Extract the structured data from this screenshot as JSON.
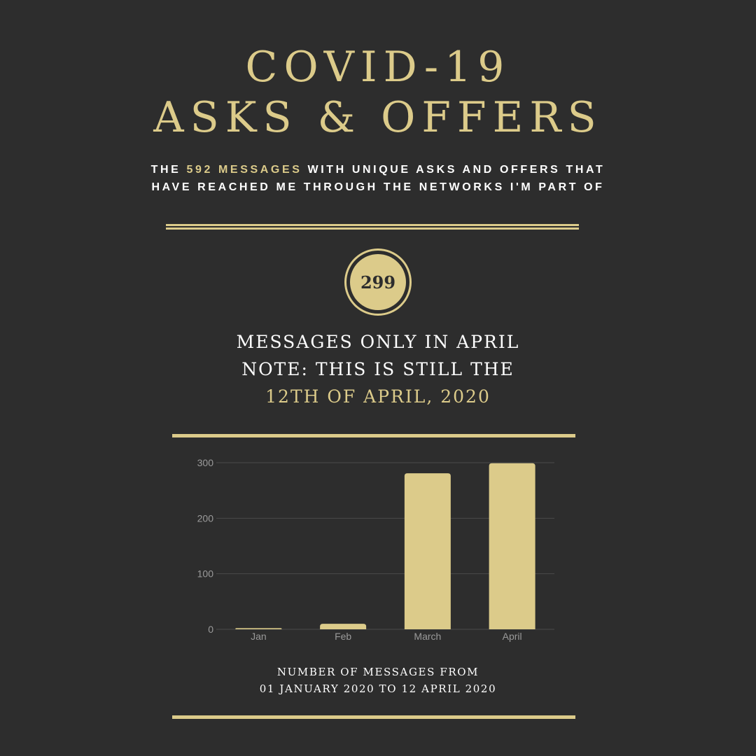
{
  "title": {
    "line1": "COVID-19",
    "line2": "ASKS & OFFERS"
  },
  "subtitle": {
    "prefix": "THE ",
    "highlight": "592 MESSAGES",
    "line1_rest": " WITH UNIQUE ASKS AND OFFERS THAT",
    "line2": "HAVE REACHED ME THROUGH THE NETWORKS I'M PART OF"
  },
  "badge": {
    "value": "299"
  },
  "note": {
    "line1": "MESSAGES ONLY IN APRIL",
    "line2": "NOTE: THIS IS STILL THE",
    "line3": "12TH OF APRIL, 2020"
  },
  "caption": {
    "line1": "NUMBER OF MESSAGES FROM",
    "line2": "01 JANUARY 2020 TO 12 APRIL 2020"
  },
  "colors": {
    "background": "#2d2d2d",
    "accent": "#dccb8a",
    "text": "#ffffff",
    "axis_text": "#9a9a9a",
    "grid": "#4a4a4a"
  },
  "chart_data": {
    "type": "bar",
    "categories": [
      "Jan",
      "Feb",
      "March",
      "April"
    ],
    "values": [
      2,
      10,
      281,
      299
    ],
    "yticks": [
      0,
      100,
      200,
      300
    ],
    "ylim": [
      0,
      300
    ],
    "grid": true,
    "xlabel": "",
    "ylabel": ""
  }
}
